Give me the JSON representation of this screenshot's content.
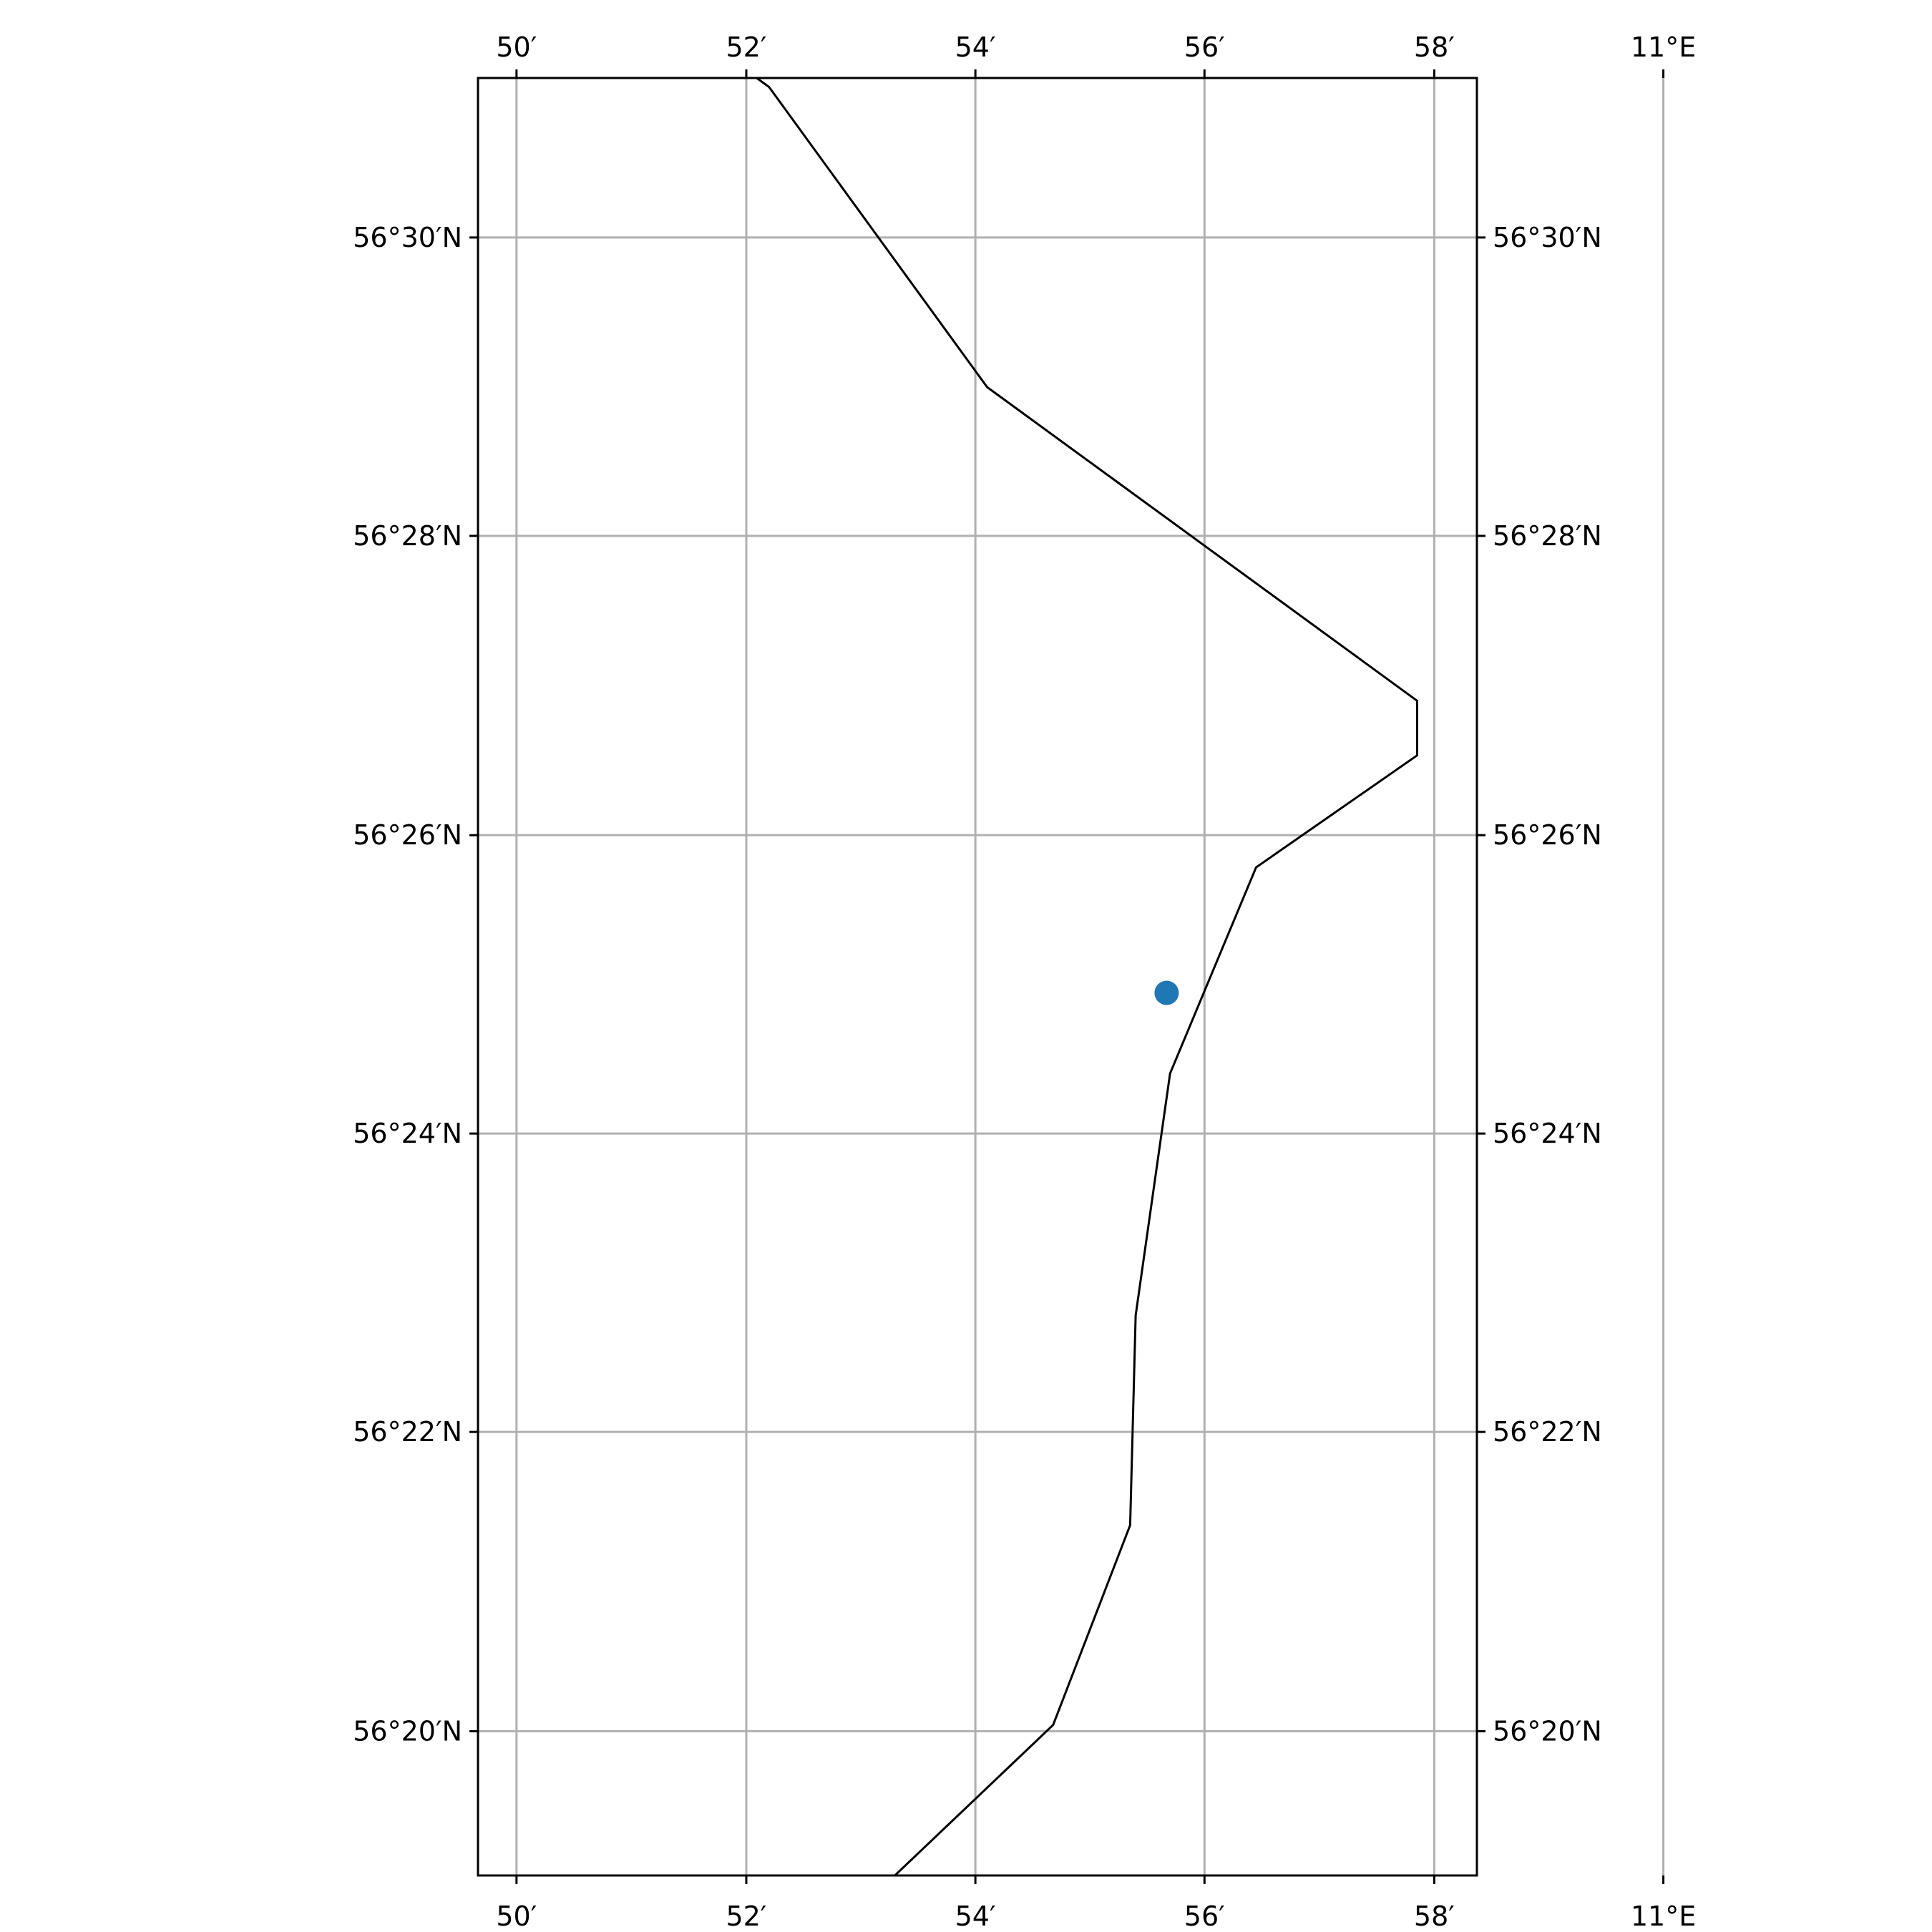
{
  "map": {
    "extent": {
      "lon_min": 10.8277,
      "lon_max": 10.9729,
      "lat_min": 56.3172,
      "lat_max": 56.5178
    },
    "lon_ticks": [
      {
        "value": 10.8333,
        "label": "50′"
      },
      {
        "value": 10.8667,
        "label": "52′"
      },
      {
        "value": 10.9,
        "label": "54′"
      },
      {
        "value": 10.9333,
        "label": "56′"
      },
      {
        "value": 10.9667,
        "label": "58′"
      },
      {
        "value": 11.0,
        "label": "11°E"
      }
    ],
    "lat_ticks": [
      {
        "value": 56.5,
        "label": "56°30′N"
      },
      {
        "value": 56.4667,
        "label": "56°28′N"
      },
      {
        "value": 56.4333,
        "label": "56°26′N"
      },
      {
        "value": 56.4,
        "label": "56°24′N"
      },
      {
        "value": 56.3667,
        "label": "56°22′N"
      },
      {
        "value": 56.3333,
        "label": "56°20′N"
      }
    ],
    "coastline": [
      {
        "lon": 10.8682,
        "lat": 56.5178
      },
      {
        "lon": 10.87,
        "lat": 56.5168
      },
      {
        "lon": 10.9017,
        "lat": 56.4833
      },
      {
        "lon": 10.9642,
        "lat": 56.4483
      },
      {
        "lon": 10.9642,
        "lat": 56.4422
      },
      {
        "lon": 10.9408,
        "lat": 56.4297
      },
      {
        "lon": 10.9283,
        "lat": 56.4067
      },
      {
        "lon": 10.9233,
        "lat": 56.3797
      },
      {
        "lon": 10.9225,
        "lat": 56.3563
      },
      {
        "lon": 10.9113,
        "lat": 56.334
      },
      {
        "lon": 10.8883,
        "lat": 56.3172
      }
    ],
    "point": {
      "lon": 10.9278,
      "lat": 56.4157,
      "color": "#1f77b4"
    },
    "colors": {
      "grid": "#b0b0b0",
      "coast": "#000000",
      "frame": "#000000",
      "background": "#ffffff"
    },
    "grid": true
  }
}
